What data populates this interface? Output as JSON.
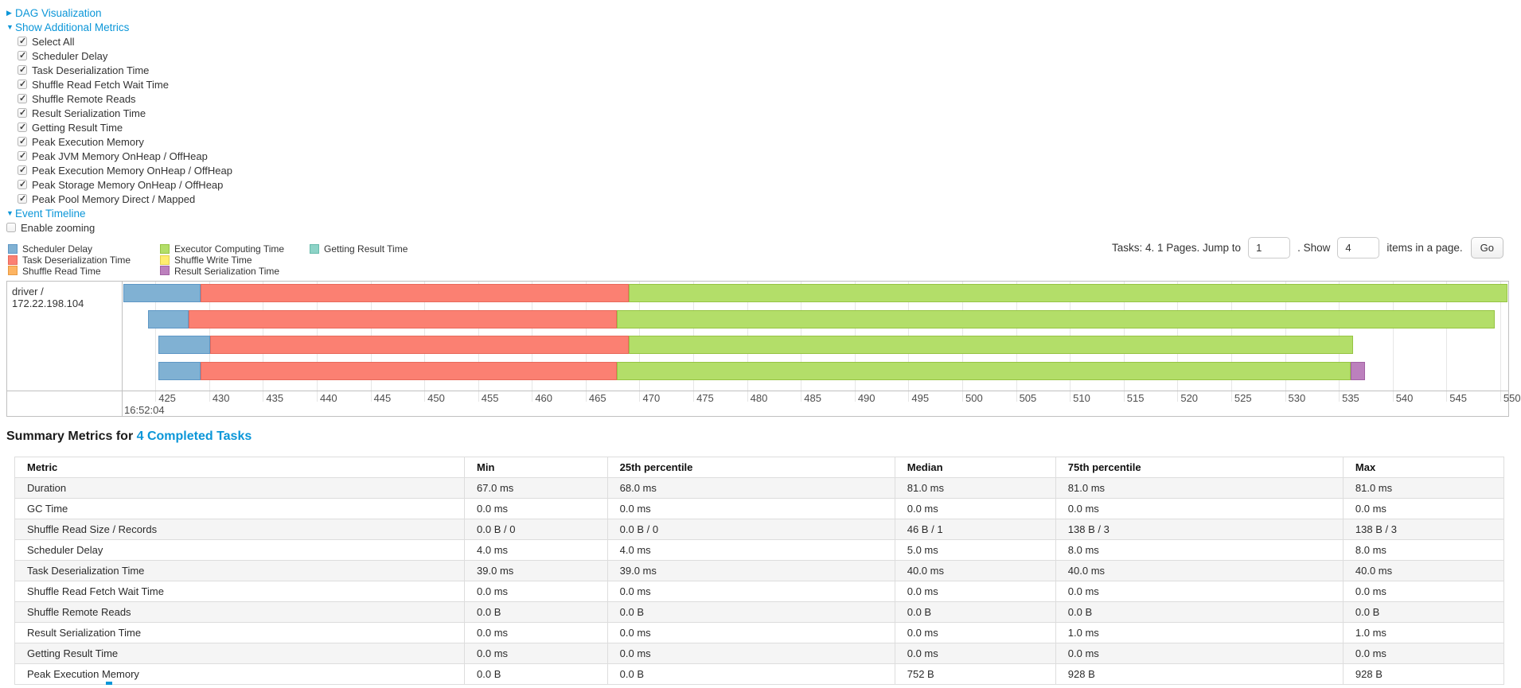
{
  "colors": {
    "link": "#0b96d8",
    "gridline": "#e6e6e6",
    "timeline_border": "#c0c0c0",
    "table_border": "#dddddd",
    "table_stripe": "#f5f5f5",
    "axis_text": "#4d4d4d"
  },
  "toggles": {
    "dag": {
      "label": "DAG Visualization",
      "state": "collapsed"
    },
    "additional_metrics": {
      "label": "Show Additional Metrics",
      "state": "expanded"
    },
    "event_timeline": {
      "label": "Event Timeline",
      "state": "expanded"
    }
  },
  "metric_checkboxes": [
    "Select All",
    "Scheduler Delay",
    "Task Deserialization Time",
    "Shuffle Read Fetch Wait Time",
    "Shuffle Remote Reads",
    "Result Serialization Time",
    "Getting Result Time",
    "Peak Execution Memory",
    "Peak JVM Memory OnHeap / OffHeap",
    "Peak Execution Memory OnHeap / OffHeap",
    "Peak Storage Memory OnHeap / OffHeap",
    "Peak Pool Memory Direct / Mapped"
  ],
  "enable_zooming": {
    "label": "Enable zooming",
    "checked": false
  },
  "segment_colors": {
    "scheduler_delay": {
      "fill": "#80B1D3",
      "border": "#5E97C5"
    },
    "task_deserialization": {
      "fill": "#FB8072",
      "border": "#E8695B"
    },
    "shuffle_read": {
      "fill": "#FDB462",
      "border": "#E89A43"
    },
    "executor_computing": {
      "fill": "#B3DE69",
      "border": "#96C443"
    },
    "shuffle_write": {
      "fill": "#FFED6F",
      "border": "#E3CF4B"
    },
    "result_serialization": {
      "fill": "#BC80BD",
      "border": "#A261A3"
    },
    "getting_result": {
      "fill": "#8DD3C7",
      "border": "#67BBAC"
    }
  },
  "legend_columns": [
    [
      {
        "key": "scheduler_delay",
        "label": "Scheduler Delay"
      },
      {
        "key": "task_deserialization",
        "label": "Task Deserialization Time"
      },
      {
        "key": "shuffle_read",
        "label": "Shuffle Read Time"
      }
    ],
    [
      {
        "key": "executor_computing",
        "label": "Executor Computing Time"
      },
      {
        "key": "shuffle_write",
        "label": "Shuffle Write Time"
      },
      {
        "key": "result_serialization",
        "label": "Result Serialization Time"
      }
    ],
    [
      {
        "key": "getting_result",
        "label": "Getting Result Time"
      }
    ]
  ],
  "pagination": {
    "text_before": "Tasks: 4. 1 Pages. Jump to",
    "jump_value": "1",
    "text_mid": ". Show",
    "show_value": "4",
    "text_after": "items in a page.",
    "go_label": "Go"
  },
  "timeline": {
    "row_label": "driver / 172.22.198.104",
    "axis": {
      "min": 421.95,
      "max": 550.75,
      "ticks_from": 425,
      "ticks_to": 550,
      "tick_step": 5,
      "time_label": "16:52:04"
    },
    "tasks": [
      {
        "segments": [
          {
            "key": "scheduler_delay",
            "start": 422.0,
            "end": 429.2
          },
          {
            "key": "task_deserialization",
            "start": 429.2,
            "end": 469.0
          },
          {
            "key": "executor_computing",
            "start": 469.0,
            "end": 550.7
          }
        ]
      },
      {
        "segments": [
          {
            "key": "scheduler_delay",
            "start": 424.3,
            "end": 428.1
          },
          {
            "key": "task_deserialization",
            "start": 428.1,
            "end": 467.9
          },
          {
            "key": "executor_computing",
            "start": 467.9,
            "end": 549.5
          }
        ]
      },
      {
        "segments": [
          {
            "key": "scheduler_delay",
            "start": 425.3,
            "end": 430.1
          },
          {
            "key": "task_deserialization",
            "start": 430.1,
            "end": 469.0
          },
          {
            "key": "executor_computing",
            "start": 469.0,
            "end": 536.3
          }
        ]
      },
      {
        "segments": [
          {
            "key": "scheduler_delay",
            "start": 425.3,
            "end": 429.2
          },
          {
            "key": "task_deserialization",
            "start": 429.2,
            "end": 467.9
          },
          {
            "key": "executor_computing",
            "start": 467.9,
            "end": 536.1
          },
          {
            "key": "result_serialization",
            "start": 536.1,
            "end": 537.4
          }
        ]
      }
    ]
  },
  "summary": {
    "title_prefix": "Summary Metrics for ",
    "title_link": "4 Completed Tasks",
    "headers": [
      "Metric",
      "Min",
      "25th percentile",
      "Median",
      "75th percentile",
      "Max"
    ],
    "column_widths_pct": [
      30.2,
      9.6,
      19.3,
      10.8,
      19.3,
      10.8
    ],
    "rows": [
      {
        "metric": "Duration",
        "values": [
          "67.0 ms",
          "68.0 ms",
          "81.0 ms",
          "81.0 ms",
          "81.0 ms"
        ]
      },
      {
        "metric": "GC Time",
        "values": [
          "0.0 ms",
          "0.0 ms",
          "0.0 ms",
          "0.0 ms",
          "0.0 ms"
        ]
      },
      {
        "metric": "Shuffle Read Size / Records",
        "values": [
          "0.0 B / 0",
          "0.0 B / 0",
          "46 B / 1",
          "138 B / 3",
          "138 B / 3"
        ]
      },
      {
        "metric": "Scheduler Delay",
        "values": [
          "4.0 ms",
          "4.0 ms",
          "5.0 ms",
          "8.0 ms",
          "8.0 ms"
        ]
      },
      {
        "metric": "Task Deserialization Time",
        "values": [
          "39.0 ms",
          "39.0 ms",
          "40.0 ms",
          "40.0 ms",
          "40.0 ms"
        ]
      },
      {
        "metric": "Shuffle Read Fetch Wait Time",
        "values": [
          "0.0 ms",
          "0.0 ms",
          "0.0 ms",
          "0.0 ms",
          "0.0 ms"
        ]
      },
      {
        "metric": "Shuffle Remote Reads",
        "values": [
          "0.0 B",
          "0.0 B",
          "0.0 B",
          "0.0 B",
          "0.0 B"
        ]
      },
      {
        "metric": "Result Serialization Time",
        "values": [
          "0.0 ms",
          "0.0 ms",
          "0.0 ms",
          "1.0 ms",
          "1.0 ms"
        ]
      },
      {
        "metric": "Getting Result Time",
        "values": [
          "0.0 ms",
          "0.0 ms",
          "0.0 ms",
          "0.0 ms",
          "0.0 ms"
        ]
      },
      {
        "metric": "Peak Execution Memory",
        "values": [
          "0.0 B",
          "0.0 B",
          "752 B",
          "928 B",
          "928 B"
        ]
      }
    ]
  }
}
